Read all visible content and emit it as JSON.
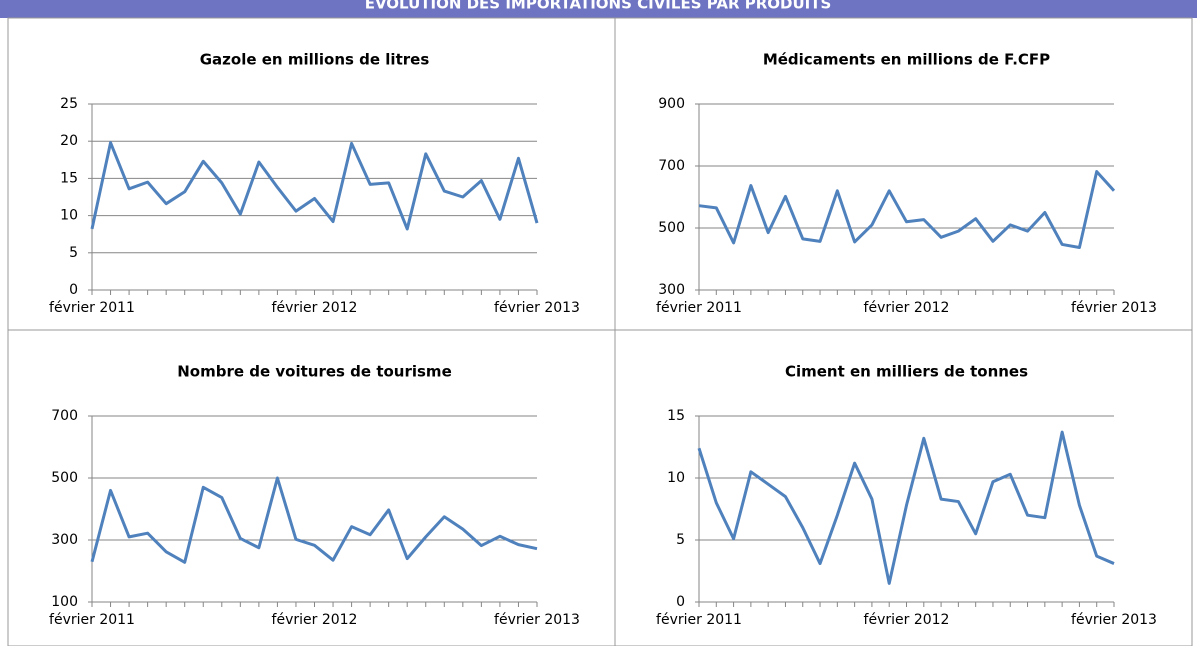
{
  "header": {
    "title": "ÉVOLUTION DES IMPORTATIONS CIVILES PAR PRODUITS"
  },
  "chart_data": [
    {
      "type": "line",
      "title": "Gazole en millions de litres",
      "categories": [
        "février 2011",
        null,
        null,
        null,
        null,
        null,
        null,
        null,
        null,
        null,
        null,
        null,
        "février 2012",
        null,
        null,
        null,
        null,
        null,
        null,
        null,
        null,
        null,
        null,
        null,
        "février 2013"
      ],
      "series": [
        {
          "color": "#4f81bd",
          "values": [
            8.2,
            19.8,
            13.6,
            14.5,
            11.6,
            13.2,
            17.3,
            14.4,
            10.2,
            17.2,
            13.8,
            10.6,
            12.3,
            9.2,
            19.7,
            14.2,
            14.4,
            8.2,
            18.3,
            13.3,
            12.5,
            14.7,
            9.5,
            17.7,
            9.0
          ]
        }
      ],
      "ylim": [
        0,
        25
      ],
      "yticks": [
        0,
        5,
        10,
        15,
        20,
        25
      ],
      "grid": true
    },
    {
      "type": "line",
      "title": "Médicaments en millions de F.CFP",
      "categories": [
        "février 2011",
        null,
        null,
        null,
        null,
        null,
        null,
        null,
        null,
        null,
        null,
        null,
        "février 2012",
        null,
        null,
        null,
        null,
        null,
        null,
        null,
        null,
        null,
        null,
        null,
        "février 2013"
      ],
      "series": [
        {
          "color": "#4f81bd",
          "values": [
            572,
            565,
            452,
            637,
            485,
            602,
            465,
            457,
            620,
            455,
            510,
            620,
            520,
            527,
            470,
            490,
            530,
            457,
            510,
            490,
            550,
            447,
            437,
            682,
            620
          ]
        }
      ],
      "ylim": [
        300,
        900
      ],
      "yticks": [
        300,
        500,
        700,
        900
      ],
      "grid": true
    },
    {
      "type": "line",
      "title": "Nombre de voitures de tourisme",
      "categories": [
        "février 2011",
        null,
        null,
        null,
        null,
        null,
        null,
        null,
        null,
        null,
        null,
        null,
        "février 2012",
        null,
        null,
        null,
        null,
        null,
        null,
        null,
        null,
        null,
        null,
        null,
        "février 2013"
      ],
      "series": [
        {
          "color": "#4f81bd",
          "values": [
            230,
            460,
            310,
            322,
            262,
            228,
            470,
            437,
            305,
            275,
            500,
            302,
            283,
            235,
            343,
            317,
            397,
            240,
            310,
            375,
            335,
            282,
            312,
            285,
            272
          ]
        }
      ],
      "ylim": [
        100,
        700
      ],
      "yticks": [
        100,
        300,
        500,
        700
      ],
      "grid": true
    },
    {
      "type": "line",
      "title": "Ciment en milliers de tonnes",
      "categories": [
        "février 2011",
        null,
        null,
        null,
        null,
        null,
        null,
        null,
        null,
        null,
        null,
        null,
        "février 2012",
        null,
        null,
        null,
        null,
        null,
        null,
        null,
        null,
        null,
        null,
        null,
        "février 2013"
      ],
      "series": [
        {
          "color": "#4f81bd",
          "values": [
            12.4,
            8.0,
            5.1,
            10.5,
            9.5,
            8.5,
            6.0,
            3.1,
            7.0,
            11.2,
            8.3,
            1.5,
            7.8,
            13.2,
            8.3,
            8.1,
            5.5,
            9.7,
            10.3,
            7.0,
            6.8,
            13.7,
            7.8,
            3.7,
            3.1
          ]
        }
      ],
      "ylim": [
        0,
        15
      ],
      "yticks": [
        0,
        5,
        10,
        15
      ],
      "grid": true
    }
  ]
}
